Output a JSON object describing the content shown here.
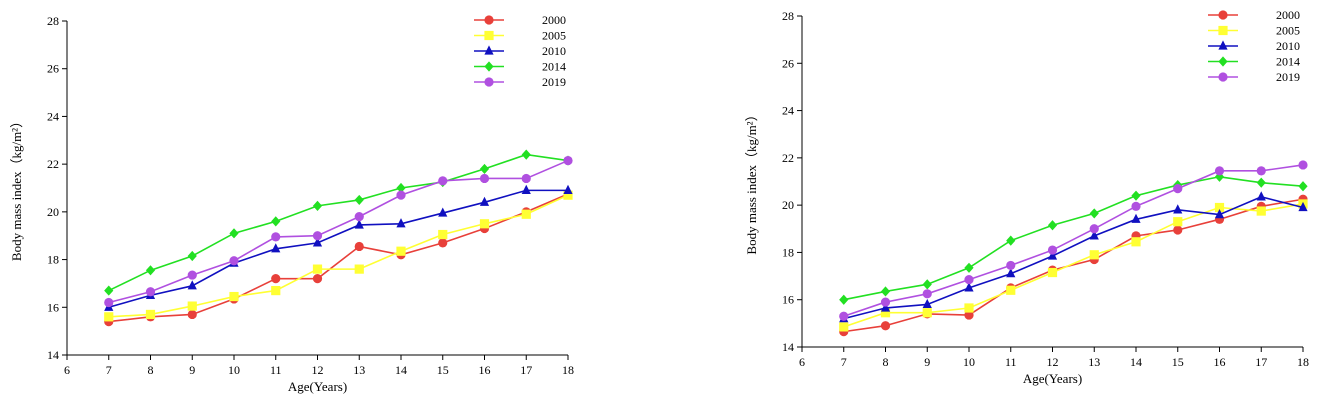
{
  "chart_data": [
    {
      "type": "line",
      "xlabel": "Age(Years)",
      "ylabel": "Body mass index（kg/m²）",
      "xlim": [
        6,
        18
      ],
      "ylim": [
        14,
        28
      ],
      "x_ticks": [
        6,
        7,
        8,
        9,
        10,
        11,
        12,
        13,
        14,
        15,
        16,
        17,
        18
      ],
      "y_ticks": [
        14,
        16,
        18,
        20,
        22,
        24,
        26,
        28
      ],
      "legend_position": "top-right",
      "x": [
        7,
        8,
        9,
        10,
        11,
        12,
        13,
        14,
        15,
        16,
        17,
        18
      ],
      "series": [
        {
          "name": "2000",
          "color": "#e8403a",
          "marker": "circle",
          "values": [
            15.4,
            15.6,
            15.7,
            16.35,
            17.2,
            17.2,
            18.55,
            18.2,
            18.7,
            19.3,
            20.0,
            20.75
          ]
        },
        {
          "name": "2005",
          "color": "#ffff33",
          "marker": "square",
          "values": [
            15.6,
            15.7,
            16.05,
            16.45,
            16.7,
            17.6,
            17.6,
            18.35,
            19.05,
            19.5,
            19.9,
            20.7
          ]
        },
        {
          "name": "2010",
          "color": "#1010c0",
          "marker": "triangle",
          "values": [
            16.0,
            16.5,
            16.9,
            17.85,
            18.45,
            18.7,
            19.45,
            19.5,
            19.95,
            20.4,
            20.9,
            20.9
          ]
        },
        {
          "name": "2014",
          "color": "#22e022",
          "marker": "diamond",
          "values": [
            16.7,
            17.55,
            18.15,
            19.1,
            19.6,
            20.25,
            20.5,
            21.0,
            21.25,
            21.8,
            22.4,
            22.15
          ]
        },
        {
          "name": "2019",
          "color": "#b050e0",
          "marker": "circle",
          "values": [
            16.2,
            16.65,
            17.35,
            17.95,
            18.95,
            19.0,
            19.8,
            20.7,
            21.3,
            21.4,
            21.4,
            22.15
          ]
        }
      ]
    },
    {
      "type": "line",
      "xlabel": "Age(Years)",
      "ylabel": "Body mass index（kg/m²）",
      "xlim": [
        6,
        18
      ],
      "ylim": [
        14,
        28
      ],
      "x_ticks": [
        6,
        7,
        8,
        9,
        10,
        11,
        12,
        13,
        14,
        15,
        16,
        17,
        18
      ],
      "y_ticks": [
        14,
        16,
        18,
        20,
        22,
        24,
        26,
        28
      ],
      "legend_position": "top-right",
      "x": [
        7,
        8,
        9,
        10,
        11,
        12,
        13,
        14,
        15,
        16,
        17,
        18
      ],
      "series": [
        {
          "name": "2000",
          "color": "#e8403a",
          "marker": "circle",
          "values": [
            14.65,
            14.9,
            15.4,
            15.35,
            16.5,
            17.25,
            17.7,
            18.7,
            18.95,
            19.4,
            19.95,
            20.25
          ]
        },
        {
          "name": "2005",
          "color": "#ffff33",
          "marker": "square",
          "values": [
            14.85,
            15.45,
            15.45,
            15.65,
            16.4,
            17.15,
            17.9,
            18.45,
            19.3,
            19.9,
            19.75,
            20.05
          ]
        },
        {
          "name": "2010",
          "color": "#1010c0",
          "marker": "triangle",
          "values": [
            15.2,
            15.65,
            15.8,
            16.5,
            17.1,
            17.85,
            18.7,
            19.4,
            19.8,
            19.6,
            20.35,
            19.9
          ]
        },
        {
          "name": "2014",
          "color": "#22e022",
          "marker": "diamond",
          "values": [
            16.0,
            16.35,
            16.65,
            17.35,
            18.5,
            19.15,
            19.65,
            20.4,
            20.85,
            21.2,
            20.95,
            20.8
          ]
        },
        {
          "name": "2019",
          "color": "#b050e0",
          "marker": "circle",
          "values": [
            15.3,
            15.9,
            16.25,
            16.85,
            17.45,
            18.1,
            19.0,
            19.95,
            20.7,
            21.45,
            21.45,
            21.7
          ]
        }
      ]
    }
  ]
}
